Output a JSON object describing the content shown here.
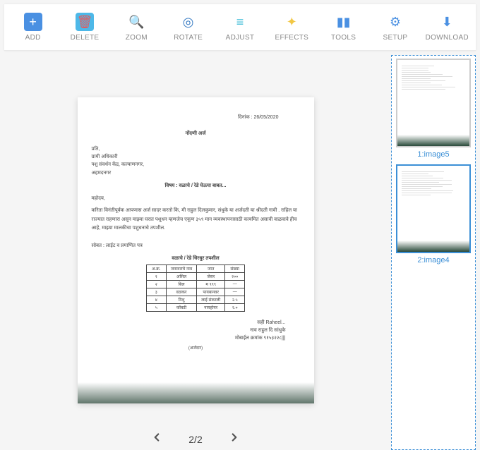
{
  "toolbar": [
    {
      "name": "add",
      "label": "ADD",
      "icon_bg": "#4a90e2",
      "icon_glyph": "+",
      "glyph_color": "#fff"
    },
    {
      "name": "delete",
      "label": "DELETE",
      "icon_bg": "#4db8e8",
      "icon_glyph": "🗑",
      "glyph_color": "#e85a5a"
    },
    {
      "name": "zoom",
      "label": "ZOOM",
      "icon_bg": "transparent",
      "icon_glyph": "🔍",
      "glyph_color": "#4a90e2"
    },
    {
      "name": "rotate",
      "label": "ROTATE",
      "icon_bg": "transparent",
      "icon_glyph": "◎",
      "glyph_color": "#3a7dc4"
    },
    {
      "name": "adjust",
      "label": "ADJUST",
      "icon_bg": "transparent",
      "icon_glyph": "≡",
      "glyph_color": "#40bcd8"
    },
    {
      "name": "effects",
      "label": "EFFECTS",
      "icon_bg": "transparent",
      "icon_glyph": "✦",
      "glyph_color": "#f2c744"
    },
    {
      "name": "tools",
      "label": "TOOLS",
      "icon_bg": "transparent",
      "icon_glyph": "▮▮",
      "glyph_color": "#4a90e2"
    },
    {
      "name": "setup",
      "label": "SETUP",
      "icon_bg": "transparent",
      "icon_glyph": "⚙",
      "glyph_color": "#4a90e2"
    },
    {
      "name": "download",
      "label": "DOWNLOAD",
      "icon_bg": "transparent",
      "icon_glyph": "⬇",
      "glyph_color": "#4a90e2"
    }
  ],
  "pager": {
    "current": "2",
    "total": "2",
    "label": "2/2"
  },
  "thumbs": [
    {
      "label": "1:image5",
      "active": false
    },
    {
      "label": "2:image4",
      "active": true
    }
  ],
  "doc": {
    "date": "दिनांक : 26/05/2020",
    "title": "नोंदणी अर्ज",
    "addr1": "प्रति,",
    "addr2": "ग्रामी अधिकारी",
    "addr3": "पशु संवर्धन केंद्र, कल्याणनगर,",
    "addr4": "अहमदनगर",
    "subject": "विषय : वळाचे / रेडे घेऊया बाबत...",
    "salut": "महोदय,",
    "body": "करिता विनंतीपूर्वक आपणास अर्ज सादर करतो कि, मी राहुल दिलकुमार, संधुके या अर्जदती या श्रीदती गावी . राहिल या राज्यात राहणारा असून माझ्या घरात पशुधन म्हणजेच एकूण ३५९ मान व्यवस्थापनासाठी कायमित असावी वाळवावे हीच आहे, माझ्या मालकीचा पशुधनाचे तपशील.",
    "attach": "सोबत : लाईट व प्रमाणित पत्र",
    "table_title": "वळाचे / रेडे धिरधुर तपशील",
    "table": {
      "headers": [
        "अ.क्र.",
        "जनावराचे नाव",
        "जात",
        "संख्या"
      ],
      "rows": [
        [
          "१",
          "असिल",
          "जेसर",
          "२००"
        ],
        [
          "२",
          "बिल",
          "म ९९९",
          "—"
        ],
        [
          "३",
          "वळकर",
          "पायबानवर",
          "—"
        ],
        [
          "४",
          "मिथु",
          "लाई संकरली",
          "२.५"
        ],
        [
          "५",
          "कोंबडी",
          "नायहोयर",
          "२.०"
        ]
      ]
    },
    "sign_sah": "सही Raheel...",
    "sign_name": "नाव राहुल दि सांधुके",
    "sign_mob": "मोबाईल क्रमांक ९१५३२२८|||",
    "footer": "(अर्जदार)"
  }
}
